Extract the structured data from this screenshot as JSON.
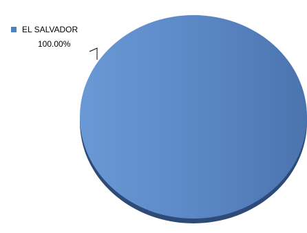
{
  "chart_data": {
    "type": "pie",
    "categories": [
      "EL SALVADOR"
    ],
    "values": [
      100.0
    ],
    "data_labels": [
      "100.00%"
    ],
    "legend_position": "top-left",
    "colors": {
      "slice": "#5A86C4",
      "slice_light": "#6A99D6",
      "slice_dark": "#4B74AE",
      "shadow": "#2E4B78",
      "legend_swatch": "#4F81BD",
      "leader_line": "#000000"
    }
  }
}
